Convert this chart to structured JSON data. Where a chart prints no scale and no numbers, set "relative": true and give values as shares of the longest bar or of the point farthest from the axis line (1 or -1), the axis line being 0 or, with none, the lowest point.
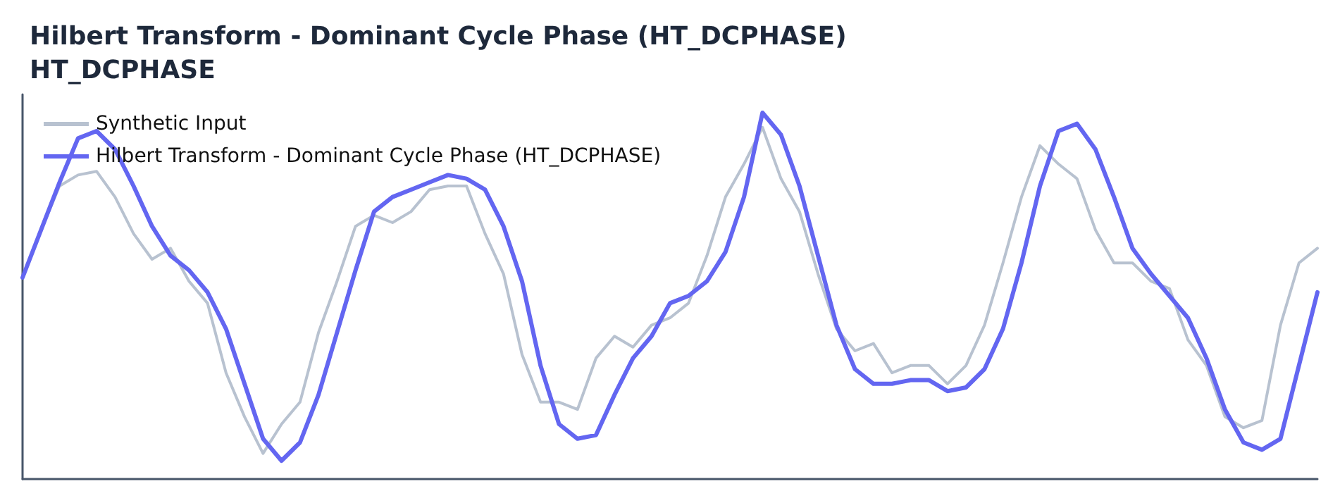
{
  "chart_data": {
    "type": "line",
    "title": "Hilbert Transform - Dominant Cycle Phase (HT_DCPHASE)",
    "subtitle": "HT_DCPHASE",
    "relative": true,
    "legend": "top left",
    "grid": false,
    "marker": "none",
    "line_style": "solid",
    "categories": [
      null,
      null,
      null,
      null,
      null,
      null,
      null,
      null,
      null,
      null,
      null,
      null,
      null,
      null,
      null,
      null,
      null,
      null,
      null,
      null,
      null,
      null,
      null,
      null,
      null,
      null,
      null,
      null,
      null,
      null,
      null,
      null,
      null,
      null,
      null,
      null,
      null,
      null,
      null,
      null,
      null,
      null,
      null,
      null,
      null,
      null,
      null,
      null,
      null,
      null,
      null,
      null,
      null,
      null,
      null,
      null,
      null,
      null,
      null,
      null,
      null,
      null,
      null,
      null,
      null,
      null,
      null,
      null,
      null,
      null,
      null
    ],
    "series": [
      {
        "name": "Synthetic Input",
        "color": "#b8c2d0",
        "values": [
          0.55,
          0.68,
          0.8,
          0.83,
          0.84,
          0.77,
          0.67,
          0.6,
          0.63,
          0.54,
          0.48,
          0.29,
          0.17,
          0.07,
          0.15,
          0.21,
          0.4,
          0.54,
          0.69,
          0.72,
          0.7,
          0.73,
          0.79,
          0.8,
          0.8,
          0.67,
          0.56,
          0.34,
          0.21,
          0.21,
          0.19,
          0.33,
          0.39,
          0.36,
          0.42,
          0.44,
          0.48,
          0.61,
          0.77,
          0.86,
          0.96,
          0.82,
          0.73,
          0.56,
          0.41,
          0.35,
          0.37,
          0.29,
          0.31,
          0.31,
          0.26,
          0.31,
          0.42,
          0.59,
          0.77,
          0.91,
          0.86,
          0.82,
          0.68,
          0.59,
          0.59,
          0.54,
          0.52,
          0.38,
          0.31,
          0.17,
          0.14,
          0.16,
          0.42,
          0.59,
          0.63
        ]
      },
      {
        "name": "Hilbert Transform - Dominant Cycle Phase (HT_DCPHASE)",
        "color": "#6366f1",
        "values": [
          0.55,
          0.68,
          0.81,
          0.93,
          0.95,
          0.9,
          0.8,
          0.69,
          0.61,
          0.57,
          0.51,
          0.41,
          0.26,
          0.11,
          0.05,
          0.1,
          0.23,
          0.4,
          0.57,
          0.73,
          0.77,
          0.79,
          0.81,
          0.83,
          0.82,
          0.79,
          0.69,
          0.54,
          0.31,
          0.15,
          0.11,
          0.12,
          0.23,
          0.33,
          0.39,
          0.48,
          0.5,
          0.54,
          0.62,
          0.77,
          1.0,
          0.94,
          0.8,
          0.61,
          0.42,
          0.3,
          0.26,
          0.26,
          0.27,
          0.27,
          0.24,
          0.25,
          0.3,
          0.41,
          0.59,
          0.8,
          0.95,
          0.97,
          0.9,
          0.77,
          0.63,
          0.56,
          0.5,
          0.44,
          0.33,
          0.19,
          0.1,
          0.08,
          0.11,
          0.31,
          0.51
        ]
      }
    ]
  }
}
